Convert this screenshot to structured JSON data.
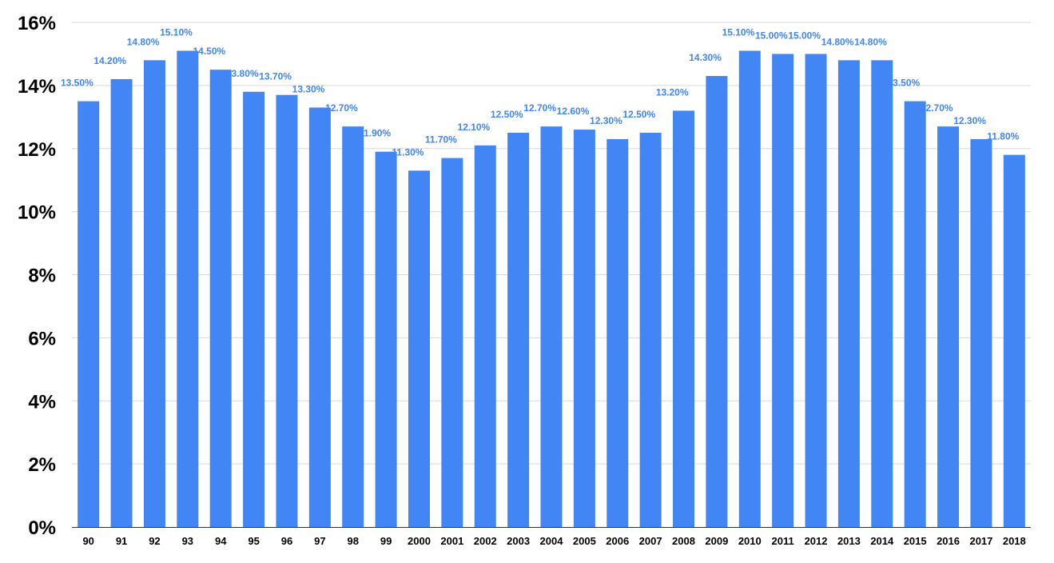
{
  "chart_data": {
    "type": "bar",
    "title": "",
    "xlabel": "",
    "ylabel": "",
    "ylim": [
      0,
      16
    ],
    "y_ticks": [
      0,
      2,
      4,
      6,
      8,
      10,
      12,
      14,
      16
    ],
    "y_tick_labels": [
      "0%",
      "2%",
      "4%",
      "6%",
      "8%",
      "10%",
      "12%",
      "14%",
      "16%"
    ],
    "grid": true,
    "legend": "none",
    "bar_color": "#4285f4",
    "label_color": "#4285f4",
    "categories": [
      "90",
      "91",
      "92",
      "93",
      "94",
      "95",
      "96",
      "97",
      "98",
      "99",
      "2000",
      "2001",
      "2002",
      "2003",
      "2004",
      "2005",
      "2006",
      "2007",
      "2008",
      "2009",
      "2010",
      "2011",
      "2012",
      "2013",
      "2014",
      "2015",
      "2016",
      "2017",
      "2018"
    ],
    "values": [
      13.5,
      14.2,
      14.8,
      15.1,
      14.5,
      13.8,
      13.7,
      13.3,
      12.7,
      11.9,
      11.3,
      11.7,
      12.1,
      12.5,
      12.7,
      12.6,
      12.3,
      12.5,
      13.2,
      14.3,
      15.1,
      15.0,
      15.0,
      14.8,
      14.8,
      13.5,
      12.7,
      12.3,
      11.8
    ],
    "data_labels": [
      "13.50%",
      "14.20%",
      "14.80%",
      "15.10%",
      "14.50%",
      "13.80%",
      "13.70%",
      "13.30%",
      "12.70%",
      "11.90%",
      "11.30%",
      "11.70%",
      "12.10%",
      "12.50%",
      "12.70%",
      "12.60%",
      "12.30%",
      "12.50%",
      "13.20%",
      "14.30%",
      "15.10%",
      "15.00%",
      "15.00%",
      "14.80%",
      "14.80%",
      "13.50%",
      "12.70%",
      "12.30%",
      "11.80%"
    ]
  }
}
